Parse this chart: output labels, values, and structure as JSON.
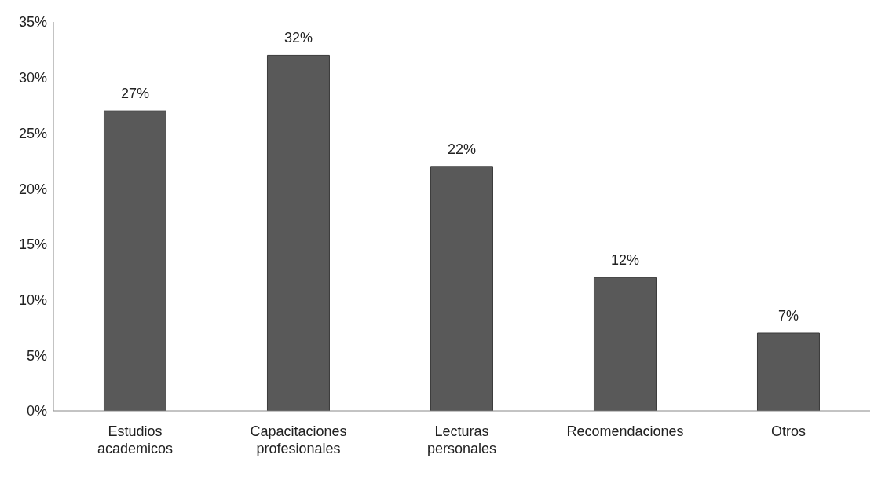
{
  "chart_data": {
    "type": "bar",
    "categories": [
      "Estudios academicos",
      "Capacitaciones profesionales",
      "Lecturas personales",
      "Recomendaciones",
      "Otros"
    ],
    "values": [
      27,
      32,
      22,
      12,
      7
    ],
    "color": "#595959",
    "ylim": [
      0,
      35
    ],
    "yticks": [
      {
        "value": 0,
        "label": "0%"
      },
      {
        "value": 5,
        "label": "5%"
      },
      {
        "value": 10,
        "label": "10%"
      },
      {
        "value": 15,
        "label": "15%"
      },
      {
        "value": 20,
        "label": "20%"
      },
      {
        "value": 25,
        "label": "25%"
      },
      {
        "value": 30,
        "label": "30%"
      },
      {
        "value": 35,
        "label": "35%"
      }
    ],
    "value_labels": [
      "27%",
      "32%",
      "22%",
      "12%",
      "7%"
    ],
    "grid": false,
    "legend": false
  }
}
